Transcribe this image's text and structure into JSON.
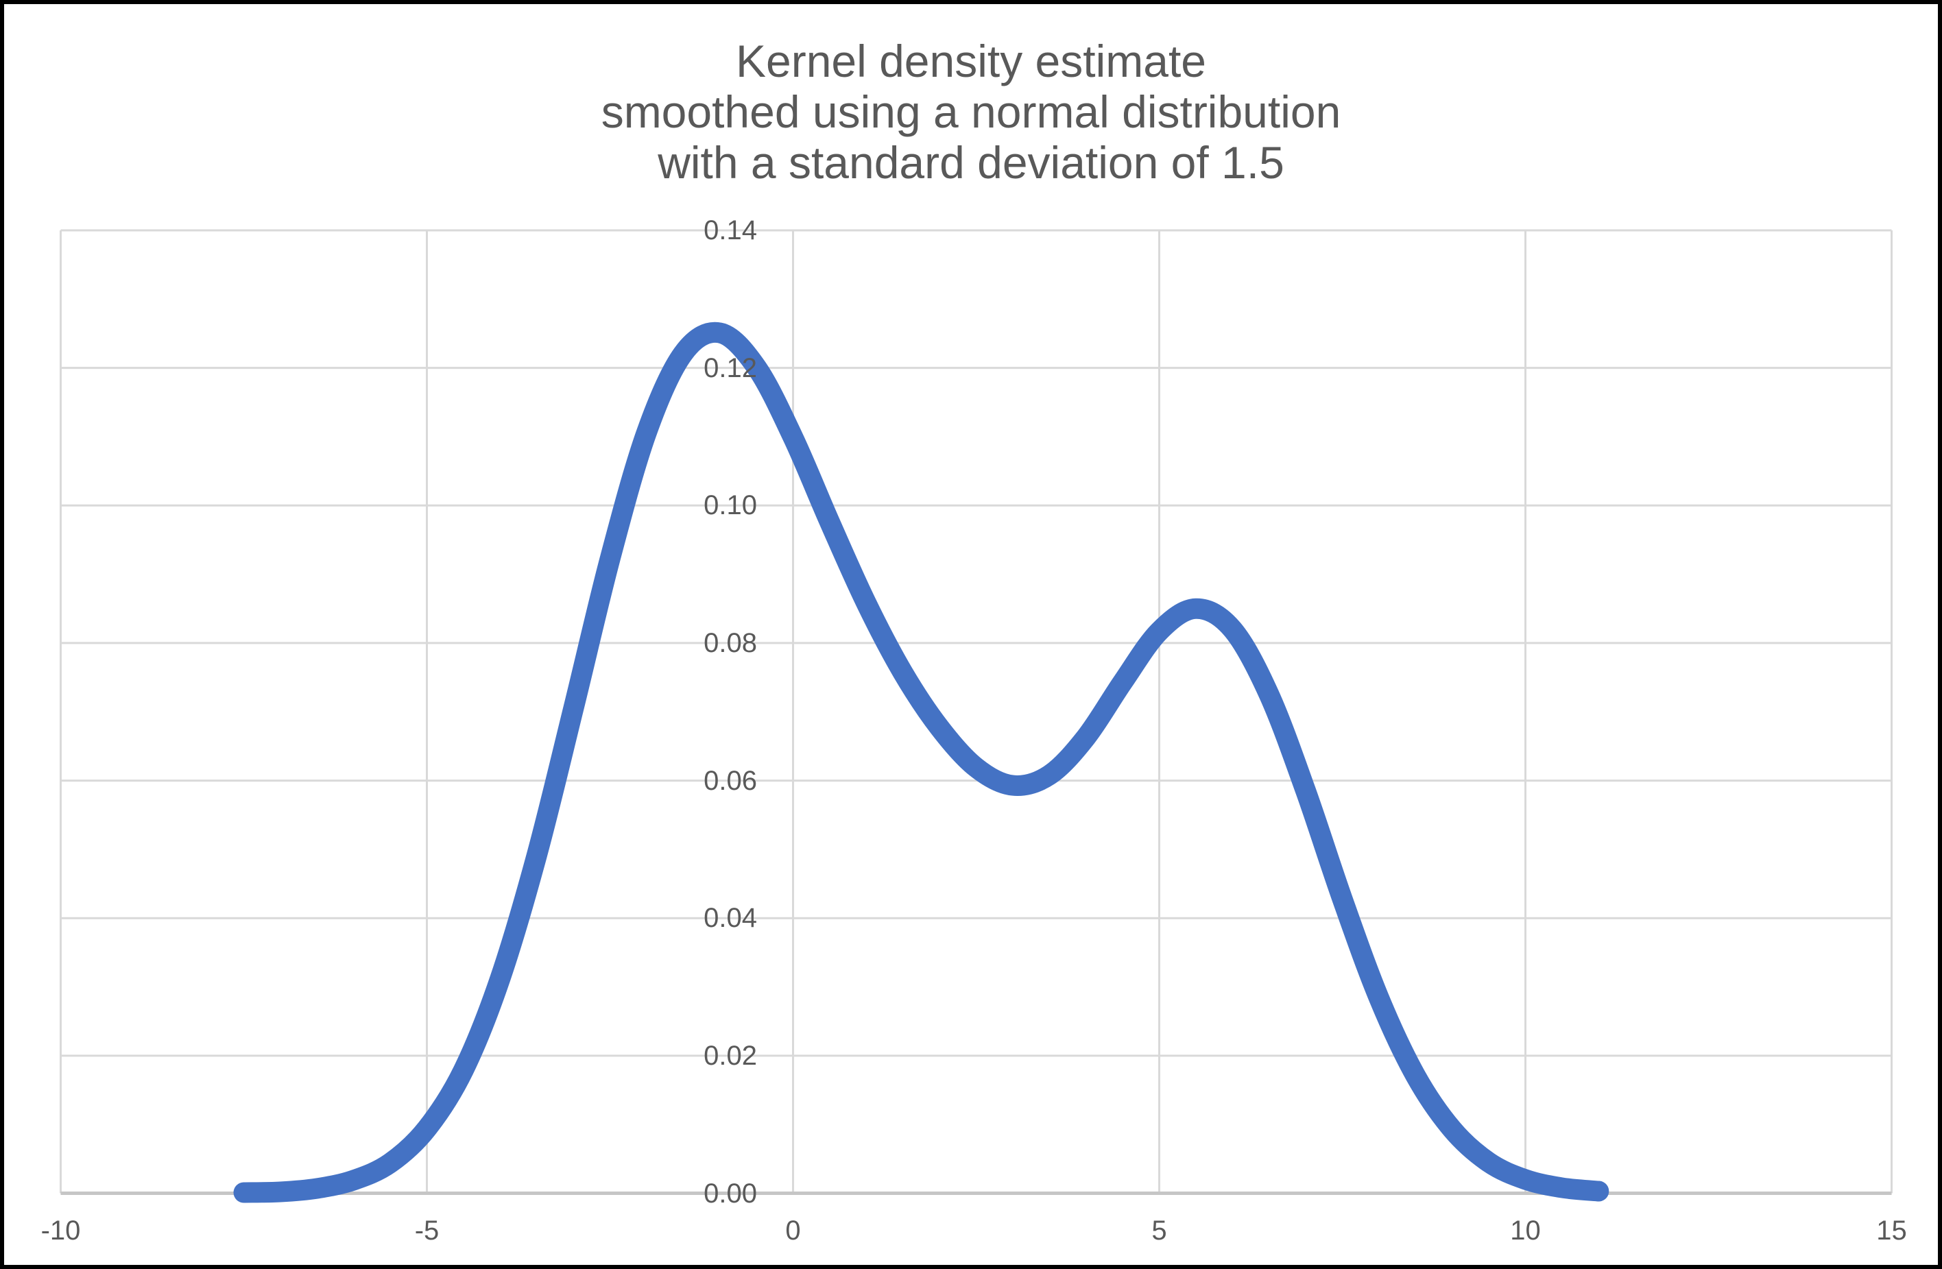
{
  "title": {
    "line1": "Kernel density estimate",
    "line2": "smoothed using a normal distribution",
    "line3": "with a standard deviation of 1.5"
  },
  "colors": {
    "curve": "#4472C4",
    "gridline": "#D9D9D9",
    "axis_line": "#C6C6C6",
    "tick_text": "#595959",
    "title_text": "#595959",
    "frame": "#000000",
    "background": "#FFFFFF"
  },
  "chart_data": {
    "type": "line",
    "title": "Kernel density estimate smoothed using a normal distribution with a standard deviation of 1.5",
    "xlabel": "",
    "ylabel": "",
    "xlim": [
      -10,
      15
    ],
    "ylim": [
      0,
      0.14
    ],
    "x_ticks": [
      -10,
      -5,
      0,
      5,
      10,
      15
    ],
    "x_tick_labels": [
      "-10",
      "-5",
      "0",
      "5",
      "10",
      "15"
    ],
    "y_ticks": [
      0.0,
      0.02,
      0.04,
      0.06,
      0.08,
      0.1,
      0.12,
      0.14
    ],
    "y_tick_labels": [
      "0.00",
      "0.02",
      "0.04",
      "0.06",
      "0.08",
      "0.10",
      "0.12",
      "0.14"
    ],
    "grid": true,
    "legend": false,
    "smoothing": {
      "kernel": "normal",
      "standard_deviation": 1.5
    },
    "series": [
      {
        "name": "Kernel density estimate",
        "x": [
          -7.5,
          -7.0,
          -6.5,
          -6.0,
          -5.5,
          -5.0,
          -4.5,
          -4.0,
          -3.5,
          -3.0,
          -2.5,
          -2.0,
          -1.5,
          -1.0,
          -0.5,
          0.0,
          0.5,
          1.0,
          1.5,
          2.0,
          2.5,
          3.0,
          3.5,
          4.0,
          4.5,
          5.0,
          5.5,
          6.0,
          6.5,
          7.0,
          7.5,
          8.0,
          8.5,
          9.0,
          9.5,
          10.0,
          10.5,
          11.0
        ],
        "y": [
          0.0001,
          0.0002,
          0.0007,
          0.0019,
          0.0044,
          0.0094,
          0.0179,
          0.0312,
          0.0491,
          0.0704,
          0.0922,
          0.1106,
          0.1221,
          0.1251,
          0.1201,
          0.1099,
          0.0976,
          0.0858,
          0.0757,
          0.0677,
          0.0619,
          0.0593,
          0.0608,
          0.0663,
          0.0743,
          0.0817,
          0.085,
          0.082,
          0.0725,
          0.0585,
          0.0428,
          0.0284,
          0.0171,
          0.0093,
          0.0045,
          0.002,
          0.0008,
          0.0003
        ],
        "peaks": [
          {
            "x": -1.0,
            "y": 0.125
          },
          {
            "x": 5.5,
            "y": 0.085
          }
        ],
        "valley": {
          "x": 3.0,
          "y": 0.059
        }
      }
    ]
  }
}
